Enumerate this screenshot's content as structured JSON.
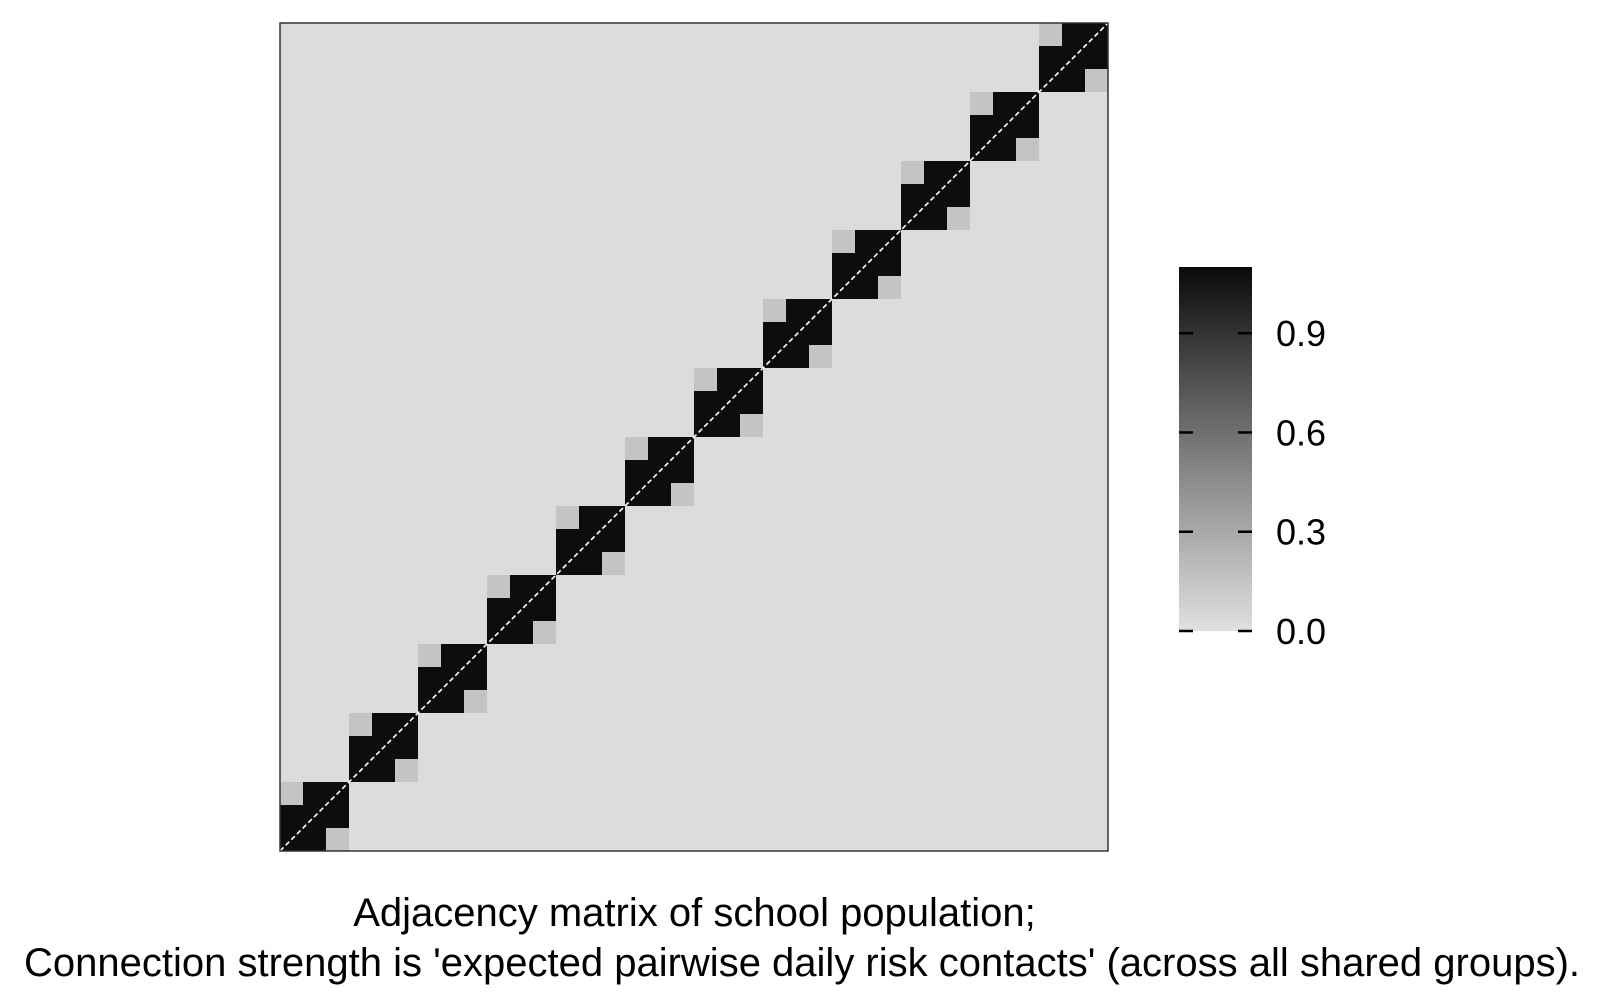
{
  "chart_data": {
    "type": "heatmap",
    "description_matrix": "block-diagonal adjacency matrix",
    "n_blocks": 12,
    "block_size": 3,
    "cell_values": {
      "diagonal": 0.0,
      "within_group_pairs": 1.1,
      "within_block_cross_group": 0.15,
      "background": 0.0
    },
    "colorbar": {
      "ticks": [
        "0.0",
        "0.3",
        "0.6",
        "0.9"
      ],
      "tick_values": [
        0.0,
        0.3,
        0.6,
        0.9
      ],
      "range": [
        0.0,
        1.1
      ],
      "low_color": "#dcdcdc",
      "high_color": "#0a0a0a"
    },
    "colors": {
      "background_cell": "#dcdcdc",
      "block_cell": "#c4c4c4",
      "strong_cell": "#0d0d0d",
      "diagonal_line": "#ffffff",
      "border": "#333333"
    },
    "title": "Adjacency matrix of school population;",
    "subtitle": "Connection strength is 'expected pairwise daily risk contacts' (across all shared groups)."
  }
}
